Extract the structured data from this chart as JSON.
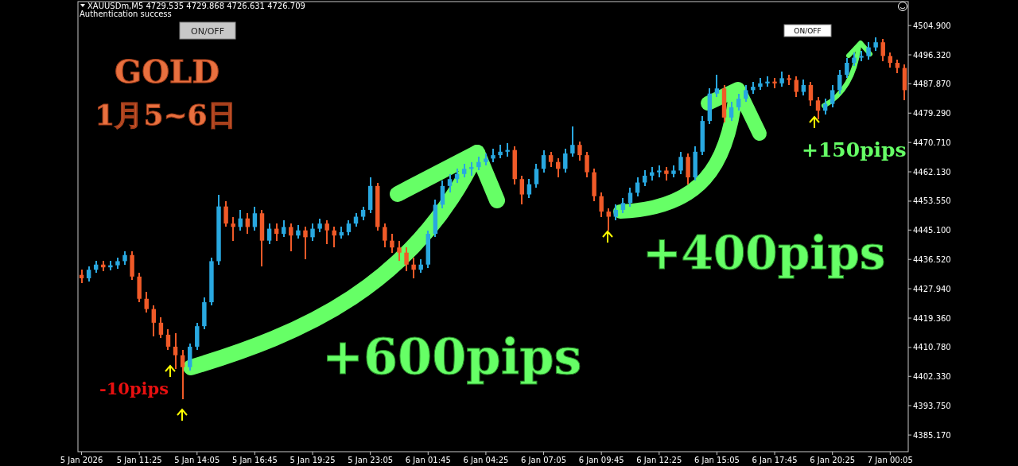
{
  "chart_data": {
    "type": "candlestick",
    "annotations": [
      "XAUUSDm,M5  4729.535 4729.868 4726.631 4726.709",
      "Authentication success",
      "ON/OFF",
      "ON/OFF",
      "GOLD",
      "1月5~6日",
      "-10pips",
      "+600pips",
      "+400pips",
      "+150pips"
    ],
    "categories": [
      "5 Jan 2026",
      null,
      null,
      null,
      null,
      null,
      null,
      null,
      "5 Jan 11:25",
      null,
      null,
      null,
      null,
      null,
      null,
      null,
      "5 Jan 14:05",
      null,
      null,
      null,
      null,
      null,
      null,
      null,
      "5 Jan 16:45",
      null,
      null,
      null,
      null,
      null,
      null,
      null,
      "5 Jan 19:25",
      null,
      null,
      null,
      null,
      null,
      null,
      null,
      "5 Jan 23:05",
      null,
      null,
      null,
      null,
      null,
      null,
      null,
      "6 Jan 01:45",
      null,
      null,
      null,
      null,
      null,
      null,
      null,
      "6 Jan 04:25",
      null,
      null,
      null,
      null,
      null,
      null,
      null,
      "6 Jan 07:05",
      null,
      null,
      null,
      null,
      null,
      null,
      null,
      "6 Jan 09:45",
      null,
      null,
      null,
      null,
      null,
      null,
      null,
      "6 Jan 12:25",
      null,
      null,
      null,
      null,
      null,
      null,
      null,
      "6 Jan 15:05",
      null,
      null,
      null,
      null,
      null,
      null,
      null,
      "6 Jan 17:45",
      null,
      null,
      null,
      null,
      null,
      null,
      null,
      "6 Jan 20:25",
      null,
      null,
      null,
      null,
      null,
      null,
      null,
      "7 Jan 00:05",
      null,
      null
    ],
    "ohlc": [
      [
        4432,
        4433.5,
        4429.5,
        4431
      ],
      [
        4431,
        4434.5,
        4430,
        4433.5
      ],
      [
        4433.5,
        4436,
        4432.5,
        4435
      ],
      [
        4435,
        4436,
        4433,
        4434.2
      ],
      [
        4434.2,
        4436,
        4433.2,
        4434.8
      ],
      [
        4434.8,
        4437,
        4433.8,
        4436
      ],
      [
        4436,
        4439,
        4435,
        4437.8
      ],
      [
        4437.8,
        4438.8,
        4430.5,
        4431.5
      ],
      [
        4431.5,
        4432.5,
        4424,
        4425
      ],
      [
        4425,
        4427,
        4421,
        4422
      ],
      [
        4422,
        4423,
        4414,
        4418
      ],
      [
        4418,
        4419.5,
        4413.5,
        4414.5
      ],
      [
        4414.5,
        4416,
        4410,
        4411
      ],
      [
        4411,
        4415,
        4404.5,
        4408.5
      ],
      [
        4408.5,
        4410,
        4395.6,
        4405
      ],
      [
        4405,
        4412,
        4404,
        4411
      ],
      [
        4411,
        4418,
        4410,
        4417
      ],
      [
        4417,
        4425.5,
        4416,
        4424
      ],
      [
        4424,
        4437,
        4423,
        4436
      ],
      [
        4436,
        4455.5,
        4435,
        4452
      ],
      [
        4452,
        4453.5,
        4446,
        4447
      ],
      [
        4447,
        4449,
        4442,
        4446
      ],
      [
        4446,
        4451,
        4445,
        4448.5
      ],
      [
        4448.5,
        4450,
        4444,
        4446
      ],
      [
        4446,
        4452,
        4445,
        4450
      ],
      [
        4450,
        4451,
        4434.5,
        4442
      ],
      [
        4442,
        4447,
        4441,
        4445.5
      ],
      [
        4445.5,
        4447,
        4442,
        4444
      ],
      [
        4444,
        4448,
        4443,
        4446
      ],
      [
        4446,
        4447,
        4439,
        4443.5
      ],
      [
        4443.5,
        4446.5,
        4442.5,
        4445
      ],
      [
        4445,
        4446,
        4436.5,
        4443
      ],
      [
        4443,
        4447,
        4442,
        4445.5
      ],
      [
        4445.5,
        4448.5,
        4444.5,
        4447
      ],
      [
        4447,
        4448,
        4441,
        4445
      ],
      [
        4445,
        4446,
        4440,
        4443.5
      ],
      [
        4443.5,
        4446,
        4442.5,
        4444.5
      ],
      [
        4444.5,
        4448,
        4443.5,
        4447
      ],
      [
        4447,
        4450,
        4446,
        4449
      ],
      [
        4449,
        4452,
        4448,
        4451
      ],
      [
        4451,
        4460.5,
        4450,
        4458
      ],
      [
        4458,
        4459,
        4445,
        4446
      ],
      [
        4446,
        4447,
        4440,
        4442
      ],
      [
        4442,
        4444,
        4438.5,
        4440
      ],
      [
        4440,
        4442,
        4436,
        4438.5
      ],
      [
        4438.5,
        4440,
        4433,
        4435
      ],
      [
        4435,
        4437,
        4431,
        4433.5
      ],
      [
        4433.5,
        4436.5,
        4432.5,
        4435
      ],
      [
        4435,
        4445,
        4434,
        4444
      ],
      [
        4444,
        4454,
        4443,
        4452.5
      ],
      [
        4452.5,
        4459.5,
        4451.5,
        4458
      ],
      [
        4458,
        4461.5,
        4456,
        4460
      ],
      [
        4460,
        4463,
        4459,
        4461.5
      ],
      [
        4461.5,
        4464.5,
        4460.5,
        4463
      ],
      [
        4463,
        4465,
        4461,
        4463.5
      ],
      [
        4463.5,
        4466.5,
        4462.5,
        4465
      ],
      [
        4465,
        4467.5,
        4464,
        4466
      ],
      [
        4466,
        4469,
        4465,
        4467
      ],
      [
        4467,
        4470,
        4466,
        4468
      ],
      [
        4468,
        4470.5,
        4466.5,
        4468.5
      ],
      [
        4468.5,
        4469.5,
        4458.5,
        4460
      ],
      [
        4460,
        4461,
        4452.5,
        4455.5
      ],
      [
        4455.5,
        4460,
        4454.5,
        4458.5
      ],
      [
        4458.5,
        4464.5,
        4457.5,
        4463
      ],
      [
        4463,
        4468.5,
        4462,
        4467
      ],
      [
        4467,
        4468,
        4463.5,
        4465
      ],
      [
        4465,
        4466,
        4460.5,
        4463
      ],
      [
        4463,
        4469,
        4462,
        4467.5
      ],
      [
        4467.5,
        4475.5,
        4466.5,
        4470
      ],
      [
        4470,
        4471,
        4465.5,
        4467
      ],
      [
        4467,
        4468,
        4460.5,
        4462
      ],
      [
        4462,
        4463,
        4453.5,
        4455
      ],
      [
        4455,
        4456,
        4449,
        4450.5
      ],
      [
        4450.5,
        4451.5,
        4445,
        4449
      ],
      [
        4449,
        4452.5,
        4448,
        4451
      ],
      [
        4451,
        4454.5,
        4450,
        4453
      ],
      [
        4453,
        4457.5,
        4452,
        4456
      ],
      [
        4456,
        4460.5,
        4455,
        4459
      ],
      [
        4459,
        4462.5,
        4458,
        4461
      ],
      [
        4461,
        4463.5,
        4459.5,
        4462
      ],
      [
        4462,
        4464,
        4460.5,
        4462.5
      ],
      [
        4462.5,
        4463.5,
        4459.5,
        4461.5
      ],
      [
        4461.5,
        4464,
        4460.5,
        4462.5
      ],
      [
        4462.5,
        4468,
        4461.5,
        4466.5
      ],
      [
        4466.5,
        4467.5,
        4458.5,
        4460.5
      ],
      [
        4460.5,
        4469.5,
        4459.5,
        4468
      ],
      [
        4468,
        4478.5,
        4467,
        4477
      ],
      [
        4477,
        4486.5,
        4476,
        4485
      ],
      [
        4485,
        4490.5,
        4484,
        4486.5
      ],
      [
        4486.5,
        4487.5,
        4476.5,
        4478
      ],
      [
        4478,
        4482.5,
        4477,
        4481
      ],
      [
        4481,
        4485,
        4480,
        4483.5
      ],
      [
        4483.5,
        4487.5,
        4482.5,
        4486
      ],
      [
        4486,
        4488.5,
        4485,
        4487
      ],
      [
        4487,
        4489.5,
        4486,
        4488
      ],
      [
        4488,
        4490,
        4487,
        4488.5
      ],
      [
        4488.5,
        4489.5,
        4486.5,
        4488
      ],
      [
        4488,
        4491.5,
        4487,
        4489.5
      ],
      [
        4489.5,
        4490.5,
        4487.5,
        4489
      ],
      [
        4489,
        4490,
        4484,
        4485.5
      ],
      [
        4485.5,
        4489,
        4484.5,
        4487.5
      ],
      [
        4487.5,
        4488.5,
        4481.5,
        4483
      ],
      [
        4483,
        4484,
        4477.5,
        4480
      ],
      [
        4480,
        4483.5,
        4479,
        4482
      ],
      [
        4482,
        4487.5,
        4481,
        4486
      ],
      [
        4486,
        4492,
        4485,
        4490.5
      ],
      [
        4490.5,
        4495.5,
        4489.5,
        4494
      ],
      [
        4494,
        4497,
        4493,
        4495.5
      ],
      [
        4495.5,
        4497.5,
        4494.5,
        4496
      ],
      [
        4496,
        4500,
        4495,
        4498.5
      ],
      [
        4498.5,
        4501.5,
        4497.5,
        4500
      ],
      [
        4500,
        4501,
        4494.5,
        4496
      ],
      [
        4496,
        4497,
        4492.5,
        4494
      ],
      [
        4494,
        4495,
        4491,
        4492.5
      ],
      [
        4492.5,
        4493.5,
        4483,
        4486
      ]
    ],
    "colors": [
      "#f05a28",
      "#29a8e0",
      "#29a8e0",
      "#f05a28",
      "#29a8e0",
      "#29a8e0",
      "#29a8e0",
      "#f05a28",
      "#f05a28",
      "#f05a28",
      "#f05a28",
      "#f05a28",
      "#f05a28",
      "#f05a28",
      "#f05a28",
      "#29a8e0",
      "#29a8e0",
      "#29a8e0",
      "#29a8e0",
      "#29a8e0",
      "#f05a28",
      "#f05a28",
      "#29a8e0",
      "#f05a28",
      "#29a8e0",
      "#f05a28",
      "#29a8e0",
      "#f05a28",
      "#29a8e0",
      "#f05a28",
      "#29a8e0",
      "#f05a28",
      "#29a8e0",
      "#29a8e0",
      "#f05a28",
      "#f05a28",
      "#29a8e0",
      "#29a8e0",
      "#29a8e0",
      "#29a8e0",
      "#29a8e0",
      "#f05a28",
      "#f05a28",
      "#f05a28",
      "#f05a28",
      "#f05a28",
      "#f05a28",
      "#29a8e0",
      "#29a8e0",
      "#29a8e0",
      "#29a8e0",
      "#29a8e0",
      "#29a8e0",
      "#29a8e0",
      "#29a8e0",
      "#29a8e0",
      "#29a8e0",
      "#29a8e0",
      "#29a8e0",
      "#29a8e0",
      "#f05a28",
      "#f05a28",
      "#29a8e0",
      "#29a8e0",
      "#29a8e0",
      "#f05a28",
      "#f05a28",
      "#29a8e0",
      "#29a8e0",
      "#f05a28",
      "#f05a28",
      "#f05a28",
      "#f05a28",
      "#f05a28",
      "#29a8e0",
      "#29a8e0",
      "#29a8e0",
      "#29a8e0",
      "#29a8e0",
      "#29a8e0",
      "#29a8e0",
      "#f05a28",
      "#29a8e0",
      "#29a8e0",
      "#f05a28",
      "#29a8e0",
      "#29a8e0",
      "#29a8e0",
      "#29a8e0",
      "#f05a28",
      "#29a8e0",
      "#29a8e0",
      "#29a8e0",
      "#29a8e0",
      "#29a8e0",
      "#29a8e0",
      "#f05a28",
      "#29a8e0",
      "#f05a28",
      "#f05a28",
      "#29a8e0",
      "#f05a28",
      "#f05a28",
      "#29a8e0",
      "#29a8e0",
      "#29a8e0",
      "#29a8e0",
      "#29a8e0",
      "#29a8e0",
      "#29a8e0",
      "#29a8e0",
      "#f05a28",
      "#f05a28",
      "#f05a28",
      "#f05a28"
    ],
    "ylim": [
      4380.3,
      4511.9
    ],
    "yticks": [
      {
        "value": 4385.17,
        "label": "4385.170"
      },
      {
        "value": 4393.75,
        "label": "4393.750"
      },
      {
        "value": 4402.33,
        "label": "4402.330"
      },
      {
        "value": 4410.78,
        "label": "4410.780"
      },
      {
        "value": 4419.36,
        "label": "4419.360"
      },
      {
        "value": 4427.94,
        "label": "4427.940"
      },
      {
        "value": 4436.52,
        "label": "4436.520"
      },
      {
        "value": 4445.1,
        "label": "4445.100"
      },
      {
        "value": 4453.55,
        "label": "4453.550"
      },
      {
        "value": 4462.13,
        "label": "4462.130"
      },
      {
        "value": 4470.71,
        "label": "4470.710"
      },
      {
        "value": 4479.29,
        "label": "4479.290"
      },
      {
        "value": 4487.87,
        "label": "4487.870"
      },
      {
        "value": 4496.32,
        "label": "4496.320"
      },
      {
        "value": 4504.9,
        "label": "4504.900"
      }
    ]
  }
}
